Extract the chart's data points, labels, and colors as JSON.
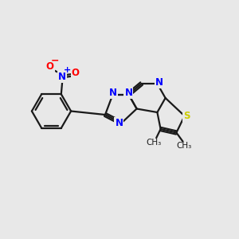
{
  "background_color": "#e8e8e8",
  "bond_color": "#1a1a1a",
  "N_color": "#0000ff",
  "O_color": "#ff0000",
  "S_color": "#cccc00",
  "C_color": "#1a1a1a",
  "line_width": 1.6,
  "figsize": [
    3.0,
    3.0
  ],
  "dpi": 100,
  "xlim": [
    0,
    10
  ],
  "ylim": [
    0,
    10
  ]
}
